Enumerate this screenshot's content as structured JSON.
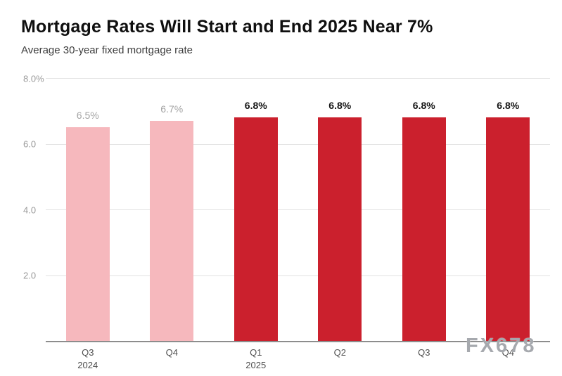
{
  "header": {
    "title": "Mortgage Rates Will Start and End 2025 Near 7%",
    "subtitle": "Average 30-year fixed mortgage rate"
  },
  "watermark": "FX678",
  "chart_data": {
    "type": "bar",
    "title": "Mortgage Rates Will Start and End 2025 Near 7%",
    "subtitle": "Average 30-year fixed mortgage rate",
    "categories": [
      "Q3",
      "Q4",
      "Q1",
      "Q2",
      "Q3",
      "Q4"
    ],
    "category_sublabels": [
      "2024",
      "",
      "2025",
      "",
      "",
      ""
    ],
    "values": [
      6.5,
      6.7,
      6.8,
      6.8,
      6.8,
      6.8
    ],
    "bar_labels": [
      "6.5%",
      "6.7%",
      "6.8%",
      "6.8%",
      "6.8%",
      "6.8%"
    ],
    "bar_colors": [
      "#f6b8bd",
      "#f6b8bd",
      "#cb202d",
      "#cb202d",
      "#cb202d",
      "#cb202d"
    ],
    "label_styles": [
      "muted",
      "muted",
      "emphasis",
      "emphasis",
      "emphasis",
      "emphasis"
    ],
    "xlabel": "",
    "ylabel": "",
    "ylim": [
      0,
      8
    ],
    "yticks": [
      {
        "value": 8,
        "label": "8.0%"
      },
      {
        "value": 6,
        "label": "6.0"
      },
      {
        "value": 4,
        "label": "4.0"
      },
      {
        "value": 2,
        "label": "2.0"
      }
    ],
    "grid": true,
    "legend": "none",
    "series_meaning": {
      "actual_color": "#f6b8bd",
      "forecast_color": "#cb202d"
    }
  }
}
